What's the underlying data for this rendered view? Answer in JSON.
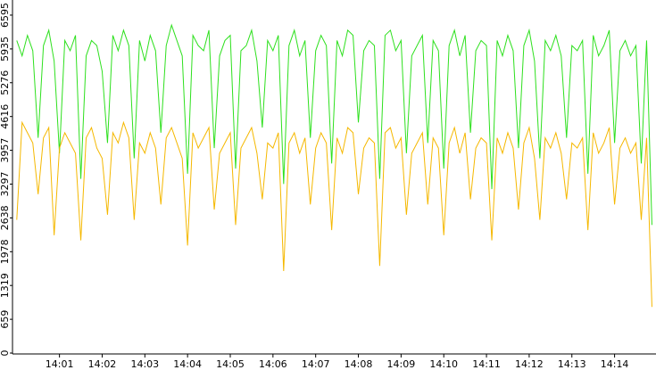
{
  "chart_data": {
    "type": "line",
    "x": [
      0,
      0.125,
      0.25,
      0.375,
      0.5,
      0.625,
      0.75,
      0.875,
      1,
      1.125,
      1.25,
      1.375,
      1.5,
      1.625,
      1.75,
      1.875,
      2,
      2.125,
      2.25,
      2.375,
      2.5,
      2.625,
      2.75,
      2.875,
      3,
      3.125,
      3.25,
      3.375,
      3.5,
      3.625,
      3.75,
      3.875,
      4,
      4.125,
      4.25,
      4.375,
      4.5,
      4.625,
      4.75,
      4.875,
      5,
      5.125,
      5.25,
      5.375,
      5.5,
      5.625,
      5.75,
      5.875,
      6,
      6.125,
      6.25,
      6.375,
      6.5,
      6.625,
      6.75,
      6.875,
      7,
      7.125,
      7.25,
      7.375,
      7.5,
      7.625,
      7.75,
      7.875,
      8,
      8.125,
      8.25,
      8.375,
      8.5,
      8.625,
      8.75,
      8.875,
      9,
      9.125,
      9.25,
      9.375,
      9.5,
      9.625,
      9.75,
      9.875,
      10,
      10.125,
      10.25,
      10.375,
      10.5,
      10.625,
      10.75,
      10.875,
      11,
      11.125,
      11.25,
      11.375,
      11.5,
      11.625,
      11.75,
      11.875,
      12,
      12.125,
      12.25,
      12.375,
      12.5,
      12.625,
      12.75,
      12.875,
      13,
      13.125,
      13.25,
      13.375,
      13.5,
      13.625,
      13.75,
      13.875,
      14,
      14.125,
      14.25,
      14.375,
      14.5,
      14.625,
      14.75,
      14.875
    ],
    "xlim": [
      -0.1,
      14.97
    ],
    "xticks": [
      {
        "value": 1,
        "label": "14:01"
      },
      {
        "value": 2,
        "label": "14:02"
      },
      {
        "value": 3,
        "label": "14:03"
      },
      {
        "value": 4,
        "label": "14:04"
      },
      {
        "value": 5,
        "label": "14:05"
      },
      {
        "value": 6,
        "label": "14:06"
      },
      {
        "value": 7,
        "label": "14:07"
      },
      {
        "value": 8,
        "label": "14:08"
      },
      {
        "value": 9,
        "label": "14:09"
      },
      {
        "value": 10,
        "label": "14:10"
      },
      {
        "value": 11,
        "label": "14:11"
      },
      {
        "value": 12,
        "label": "14:12"
      },
      {
        "value": 13,
        "label": "14:13"
      },
      {
        "value": 14,
        "label": "14:14"
      }
    ],
    "ylim": [
      0,
      6890
    ],
    "yticks": [
      0,
      659,
      1319,
      1978,
      2638,
      3297,
      3957,
      4616,
      5276,
      5935,
      6595
    ],
    "series": [
      {
        "color": "#2ee01e",
        "values": [
          6100,
          5800,
          6200,
          5900,
          4200,
          6000,
          6300,
          5700,
          3900,
          6100,
          5900,
          6200,
          3400,
          5800,
          6100,
          6000,
          5500,
          4100,
          6200,
          5900,
          6300,
          6000,
          3800,
          6100,
          5700,
          6200,
          5900,
          4300,
          6000,
          6400,
          6100,
          5800,
          3500,
          6200,
          6000,
          5900,
          6300,
          4000,
          5800,
          6100,
          6200,
          3600,
          5900,
          6000,
          6300,
          5700,
          4400,
          6100,
          5900,
          6200,
          3300,
          6000,
          6300,
          5800,
          6100,
          4200,
          5900,
          6200,
          6000,
          3700,
          6100,
          5800,
          6300,
          6200,
          4500,
          5900,
          6100,
          6000,
          3400,
          6200,
          6300,
          5900,
          6100,
          3900,
          5800,
          6000,
          6200,
          4100,
          6100,
          5900,
          3600,
          6000,
          6300,
          5800,
          6200,
          4300,
          5900,
          6100,
          6000,
          3200,
          6100,
          5800,
          6200,
          5900,
          4000,
          6000,
          6300,
          5700,
          3800,
          6100,
          5900,
          6200,
          5800,
          4200,
          6000,
          5900,
          6100,
          3500,
          6200,
          5800,
          6000,
          6300,
          4100,
          5900,
          6100,
          5800,
          6000,
          3700,
          6100,
          2500
        ]
      },
      {
        "color": "#f5b800",
        "values": [
          2600,
          4500,
          4300,
          4100,
          3100,
          4200,
          4400,
          2300,
          4000,
          4300,
          4100,
          3900,
          2200,
          4200,
          4400,
          4000,
          3800,
          2700,
          4300,
          4100,
          4500,
          4200,
          2600,
          4100,
          3900,
          4300,
          4000,
          2900,
          4200,
          4400,
          4100,
          3800,
          2100,
          4300,
          4000,
          4200,
          4400,
          2800,
          3900,
          4100,
          4300,
          2500,
          4000,
          4200,
          4400,
          3900,
          3000,
          4100,
          4000,
          4300,
          1600,
          4100,
          4300,
          3900,
          4200,
          2900,
          4000,
          4300,
          4100,
          2400,
          4200,
          3900,
          4400,
          4300,
          3100,
          4000,
          4200,
          4100,
          1700,
          4300,
          4400,
          4000,
          4200,
          2700,
          3900,
          4100,
          4300,
          2900,
          4200,
          4000,
          2300,
          4100,
          4400,
          3900,
          4300,
          3000,
          4000,
          4200,
          4100,
          2200,
          4200,
          3900,
          4300,
          4000,
          2800,
          4100,
          4400,
          3800,
          2600,
          4200,
          4000,
          4300,
          3900,
          3000,
          4100,
          4000,
          4200,
          2400,
          4300,
          3900,
          4100,
          4400,
          2900,
          4000,
          4200,
          3900,
          4100,
          2600,
          4200,
          900
        ]
      }
    ]
  }
}
